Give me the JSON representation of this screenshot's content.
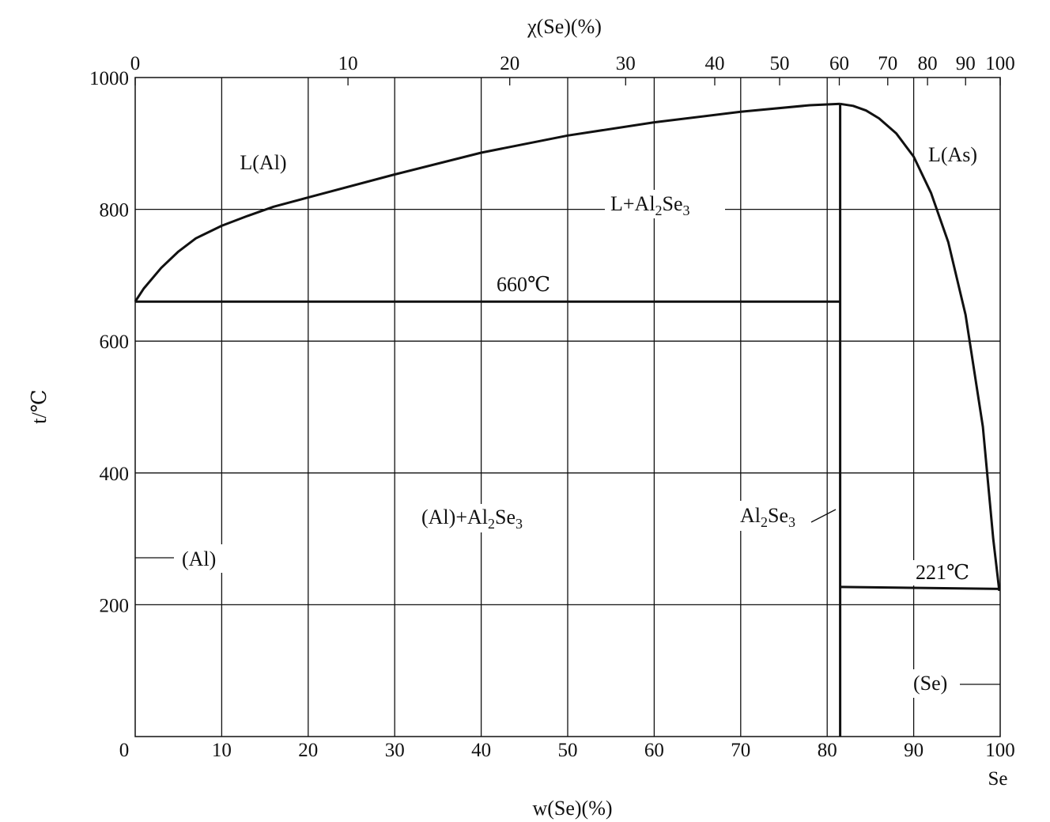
{
  "chart_data": {
    "type": "line",
    "title": "",
    "xlabel_bottom": "w(Se)(%)",
    "xlabel_top": "χ(Se)(%)",
    "ylabel": "t/℃",
    "xlim": [
      0,
      100
    ],
    "ylim": [
      0,
      1000
    ],
    "grid": true,
    "bottom_ticks": [
      "0",
      "10",
      "20",
      "30",
      "40",
      "50",
      "60",
      "70",
      "80",
      "90",
      "100"
    ],
    "bottom_end_label": "Se",
    "left_ticks": [
      "200",
      "400",
      "600",
      "800",
      "1000"
    ],
    "top_ticks": [
      {
        "label": "0",
        "w": 0
      },
      {
        "label": "10",
        "w": 24.6
      },
      {
        "label": "20",
        "w": 43.3
      },
      {
        "label": "30",
        "w": 56.7
      },
      {
        "label": "40",
        "w": 67.0
      },
      {
        "label": "50",
        "w": 74.5
      },
      {
        "label": "60",
        "w": 81.4
      },
      {
        "label": "70",
        "w": 87.0
      },
      {
        "label": "80",
        "w": 91.6
      },
      {
        "label": "90",
        "w": 96.0
      },
      {
        "label": "100",
        "w": 100
      }
    ],
    "series": [
      {
        "values": [
          [
            0,
            660
          ],
          [
            1,
            680
          ],
          [
            3,
            711
          ],
          [
            5,
            736
          ],
          [
            7,
            756
          ],
          [
            10,
            775
          ],
          [
            13,
            790
          ],
          [
            16,
            804
          ],
          [
            20,
            818
          ],
          [
            30,
            853
          ],
          [
            40,
            886
          ],
          [
            50,
            912
          ],
          [
            60,
            932
          ],
          [
            70,
            948
          ],
          [
            78,
            958
          ],
          [
            81.5,
            960
          ]
        ]
      },
      {
        "values": [
          [
            81.5,
            960
          ],
          [
            83,
            957
          ],
          [
            84.5,
            950
          ],
          [
            86,
            938
          ],
          [
            88,
            915
          ],
          [
            90,
            880
          ],
          [
            92,
            825
          ],
          [
            94,
            750
          ],
          [
            96,
            640
          ],
          [
            98,
            470
          ],
          [
            99.2,
            300
          ],
          [
            99.9,
            221
          ]
        ]
      },
      {
        "values": [
          [
            0,
            660
          ],
          [
            81.5,
            660
          ]
        ]
      },
      {
        "values": [
          [
            81.5,
            0
          ],
          [
            81.5,
            960
          ]
        ]
      },
      {
        "values": [
          [
            81.5,
            227
          ],
          [
            100,
            224
          ]
        ]
      }
    ],
    "phase_labels": {
      "l_al": "L(Al)",
      "l_as": "L(As)",
      "l_plus_compound": {
        "base": "L+Al",
        "sub1": "2",
        "mid": "Se",
        "sub2": "3"
      },
      "al_plus_compound": {
        "base": "(Al)+Al",
        "sub1": "2",
        "mid": "Se",
        "sub2": "3"
      },
      "compound": {
        "base": "Al",
        "sub1": "2",
        "mid": "Se",
        "sub2": "3"
      },
      "al_solid": "(Al)",
      "se_solid": "(Se)"
    },
    "annotations": {
      "eutectic_660": "660℃",
      "eutectic_221": "221℃"
    }
  }
}
